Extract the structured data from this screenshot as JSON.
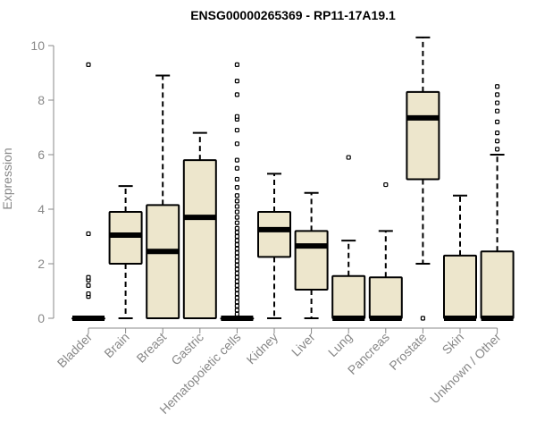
{
  "chart_data": {
    "type": "boxplot",
    "title": "ENSG00000265369 - RP11-17A19.1",
    "xlabel": "",
    "ylabel": "Expression",
    "ylim": [
      0,
      10.4
    ],
    "yticks": [
      0,
      2,
      4,
      6,
      8,
      10
    ],
    "colors": {
      "box_fill": "#ede6cc",
      "box_stroke": "#000000",
      "axis": "#888888",
      "text": "#888888",
      "title": "#000000"
    },
    "series": [
      {
        "name": "Bladder",
        "whisker_low": 0,
        "q1": 0,
        "median": 0,
        "q3": 0,
        "whisker_high": 0,
        "outliers": [
          0.8,
          0.9,
          1.2,
          1.4,
          1.5,
          3.1,
          9.3
        ]
      },
      {
        "name": "Brain",
        "whisker_low": 0,
        "q1": 2.0,
        "median": 3.05,
        "q3": 3.9,
        "whisker_high": 4.85,
        "outliers": []
      },
      {
        "name": "Breast",
        "whisker_low": 0,
        "q1": 0,
        "median": 2.45,
        "q3": 4.15,
        "whisker_high": 8.9,
        "outliers": []
      },
      {
        "name": "Gastric",
        "whisker_low": 0,
        "q1": 0,
        "median": 3.7,
        "q3": 5.8,
        "whisker_high": 6.8,
        "outliers": []
      },
      {
        "name": "Hematopoietic cells",
        "whisker_low": 0,
        "q1": 0,
        "median": 0,
        "q3": 0,
        "whisker_high": 0,
        "outliers": [
          0.15,
          0.3,
          0.45,
          0.6,
          0.75,
          0.9,
          1.05,
          1.2,
          1.35,
          1.5,
          1.65,
          1.8,
          1.95,
          2.1,
          2.25,
          2.4,
          2.55,
          2.7,
          2.85,
          3.0,
          3.15,
          3.3,
          3.5,
          3.7,
          3.9,
          4.1,
          4.3,
          4.5,
          4.8,
          5.1,
          5.5,
          5.8,
          6.4,
          6.9,
          7.3,
          7.4,
          8.2,
          8.7,
          9.3
        ]
      },
      {
        "name": "Kidney",
        "whisker_low": 0,
        "q1": 2.25,
        "median": 3.25,
        "q3": 3.9,
        "whisker_high": 5.3,
        "outliers": []
      },
      {
        "name": "Liver",
        "whisker_low": 0,
        "q1": 1.05,
        "median": 2.65,
        "q3": 3.2,
        "whisker_high": 4.6,
        "outliers": []
      },
      {
        "name": "Lung",
        "whisker_low": 0,
        "q1": 0,
        "median": 0,
        "q3": 1.55,
        "whisker_high": 2.85,
        "outliers": [
          5.9
        ]
      },
      {
        "name": "Pancreas",
        "whisker_low": 0,
        "q1": 0,
        "median": 0,
        "q3": 1.5,
        "whisker_high": 3.2,
        "outliers": [
          4.9
        ]
      },
      {
        "name": "Prostate",
        "whisker_low": 2.0,
        "q1": 5.1,
        "median": 7.35,
        "q3": 8.3,
        "whisker_high": 10.3,
        "outliers": [
          0
        ]
      },
      {
        "name": "Skin",
        "whisker_low": 0,
        "q1": 0,
        "median": 0,
        "q3": 2.3,
        "whisker_high": 4.5,
        "outliers": []
      },
      {
        "name": "Unknown / Other",
        "whisker_low": 0,
        "q1": 0,
        "median": 0,
        "q3": 2.45,
        "whisker_high": 6.0,
        "outliers": [
          6.2,
          6.5,
          6.8,
          7.2,
          7.6,
          7.9,
          8.2,
          8.5
        ]
      }
    ]
  }
}
